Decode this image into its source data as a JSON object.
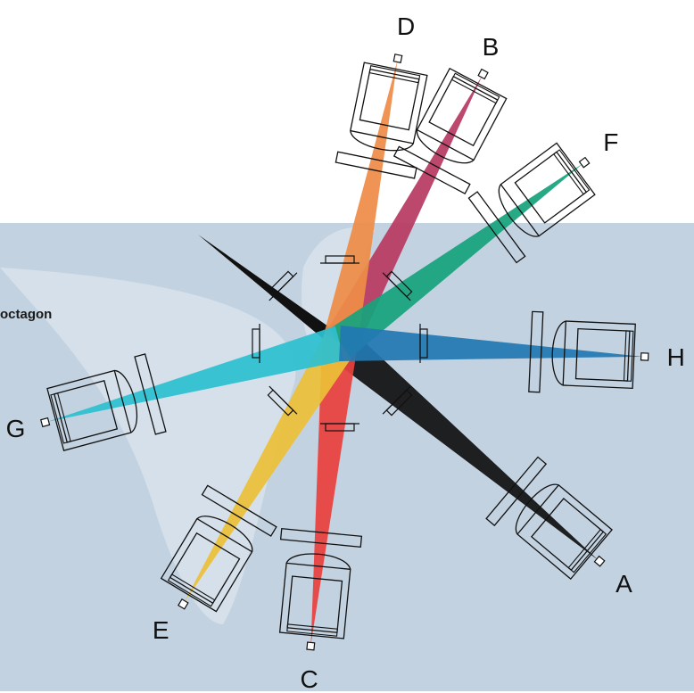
{
  "side_label": "octagon",
  "colors": {
    "background_top": "#ffffff",
    "background_lower": "#c3d2e0",
    "light_region": "#d5e0ea",
    "outline": "#111111"
  },
  "beams": [
    {
      "label": "A",
      "color": "#111111",
      "angle": 40,
      "len": 378
    },
    {
      "label": "B",
      "color": "#b83a62",
      "angle": 298,
      "len": 340
    },
    {
      "label": "C",
      "color": "#e8413e",
      "angle": 95.5,
      "len": 339
    },
    {
      "label": "D",
      "color": "#ee8c47",
      "angle": 281.5,
      "len": 324
    },
    {
      "label": "E",
      "color": "#ecbf38",
      "angle": 121,
      "len": 339
    },
    {
      "label": "F",
      "color": "#17a27d",
      "angle": 323.5,
      "len": 339
    },
    {
      "label": "G",
      "color": "#2dbfd0",
      "angle": 165,
      "len": 340
    },
    {
      "label": "H",
      "color": "#2278b3",
      "angle": 2.5,
      "len": 340
    }
  ],
  "extra_beam": {
    "color": "#111111",
    "angle": 217.5
  }
}
